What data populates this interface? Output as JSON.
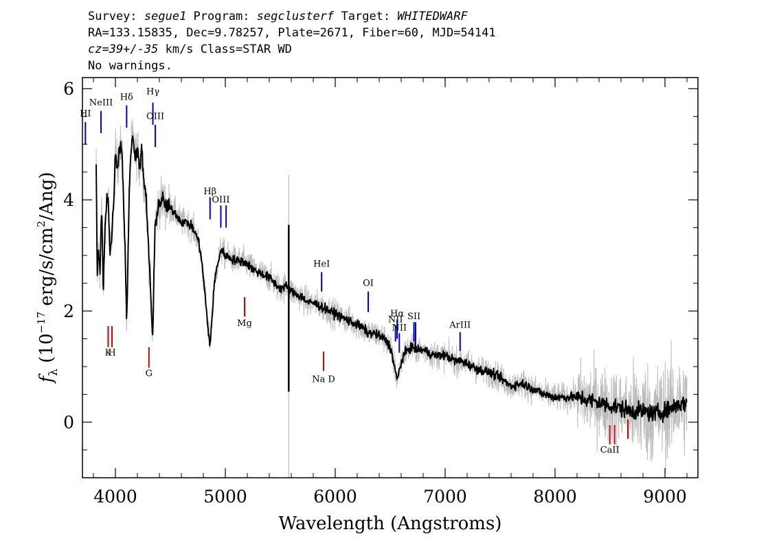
{
  "header": {
    "line1": {
      "survey_label": "Survey: ",
      "survey": "segue1",
      "program_label": " Program: ",
      "program": "segclusterf",
      "target_label": " Target: ",
      "target": "WHITEDWARF"
    },
    "line2": "RA=133.15835, Dec=9.78257, Plate=2671, Fiber=60, MJD=54141",
    "line3": {
      "cz": "cz=39+/-35",
      "rest": " km/s Class=STAR WD"
    },
    "line4": "No warnings."
  },
  "chart_data": {
    "type": "line",
    "xlabel": "Wavelength (Angstroms)",
    "ylabel": "f_λ (10^-17 erg/s/cm^2/Ang)",
    "xlim": [
      3700,
      9300
    ],
    "ylim": [
      -1,
      6.2
    ],
    "x_ticks": [
      4000,
      5000,
      6000,
      7000,
      8000,
      9000
    ],
    "y_ticks": [
      0,
      2,
      4,
      6
    ],
    "x_minor_step": 200,
    "y_minor_step": 0.5,
    "series": [
      {
        "color": "#000000",
        "x": [
          3825,
          3835,
          3845,
          3860,
          3875,
          3890,
          3905,
          3920,
          3935,
          3950,
          3965,
          3980,
          4000,
          4020,
          4040,
          4060,
          4080,
          4095,
          4102,
          4110,
          4125,
          4140,
          4160,
          4180,
          4200,
          4220,
          4240,
          4260,
          4280,
          4300,
          4320,
          4335,
          4340,
          4348,
          4360,
          4380,
          4400,
          4430,
          4460,
          4500,
          4550,
          4600,
          4650,
          4700,
          4750,
          4780,
          4800,
          4820,
          4840,
          4861,
          4880,
          4900,
          4930,
          4960,
          5000,
          5050,
          5100,
          5150,
          5200,
          5250,
          5300,
          5350,
          5400,
          5450,
          5500,
          5550,
          5600,
          5650,
          5700,
          5750,
          5800,
          5850,
          5900,
          5950,
          6000,
          6050,
          6100,
          6150,
          6200,
          6250,
          6300,
          6350,
          6400,
          6450,
          6500,
          6530,
          6563,
          6590,
          6620,
          6660,
          6700,
          6750,
          6800,
          6850,
          6900,
          6950,
          7000,
          7050,
          7100,
          7150,
          7200,
          7300,
          7400,
          7500,
          7600,
          7700,
          7800,
          7900,
          8000,
          8100,
          8200,
          8300,
          8400,
          8500,
          8600,
          8700,
          8800,
          8900,
          9000,
          9100,
          9200
        ],
        "y": [
          4.7,
          2.6,
          3.1,
          2.7,
          3.9,
          2.3,
          3.5,
          4.0,
          4.1,
          3.0,
          3.3,
          3.8,
          4.8,
          4.6,
          5.0,
          4.9,
          3.6,
          2.6,
          1.8,
          2.5,
          4.0,
          4.9,
          5.1,
          4.8,
          4.9,
          4.6,
          4.9,
          4.3,
          4.0,
          3.2,
          2.4,
          1.6,
          1.5,
          2.3,
          3.5,
          3.8,
          3.95,
          4.0,
          3.9,
          3.85,
          3.75,
          3.6,
          3.6,
          3.5,
          3.3,
          3.0,
          2.6,
          2.2,
          1.7,
          1.4,
          1.9,
          2.5,
          2.85,
          3.1,
          3.0,
          2.95,
          2.9,
          2.9,
          2.85,
          2.75,
          2.7,
          2.65,
          2.6,
          2.5,
          2.4,
          2.45,
          2.35,
          2.3,
          2.25,
          2.15,
          2.15,
          2.1,
          2.05,
          2.0,
          1.95,
          1.9,
          1.85,
          1.8,
          1.75,
          1.7,
          1.6,
          1.6,
          1.55,
          1.5,
          1.35,
          1.1,
          0.75,
          1.0,
          1.2,
          1.3,
          1.35,
          1.3,
          1.3,
          1.25,
          1.2,
          1.2,
          1.2,
          1.15,
          1.1,
          1.1,
          1.05,
          0.95,
          0.9,
          0.8,
          0.65,
          0.7,
          0.6,
          0.5,
          0.45,
          0.45,
          0.45,
          0.4,
          0.35,
          0.3,
          0.25,
          0.2,
          0.2,
          0.15,
          0.2,
          0.3,
          0.35
        ]
      }
    ],
    "noise_color": "#bcbcbc",
    "sky_line": {
      "x": 5577,
      "black_range": [
        0.55,
        3.55
      ],
      "grey_range": [
        -1.0,
        4.45
      ]
    },
    "emission_lines": [
      {
        "label": "HI",
        "x": 3727,
        "y0": 5.0,
        "y1": 5.4,
        "label_y": 5.5,
        "color": "#0000cc"
      },
      {
        "label": "NeIII",
        "x": 3869,
        "y0": 5.2,
        "y1": 5.6,
        "label_y": 5.7,
        "color": "#0000cc"
      },
      {
        "label": "Hδ",
        "x": 4102,
        "y0": 5.3,
        "y1": 5.7,
        "label_y": 5.8,
        "color": "#0000cc"
      },
      {
        "label": "Hγ",
        "x": 4341,
        "y0": 5.35,
        "y1": 5.75,
        "label_y": 5.9,
        "color": "#0000cc"
      },
      {
        "label": "OIII",
        "x": 4363,
        "y0": 4.95,
        "y1": 5.35,
        "label_y": 5.45,
        "color": "#0000cc"
      },
      {
        "label": "Hβ",
        "x": 4861,
        "y0": 3.65,
        "y1": 4.05,
        "label_y": 4.1,
        "color": "#0000cc"
      },
      {
        "label": "OIII",
        "x": 4959,
        "y0": 3.5,
        "y1": 3.9,
        "label_y": 3.95,
        "color": "#0000cc"
      },
      {
        "label": "",
        "x": 5007,
        "y0": 3.5,
        "y1": 3.9,
        "label_y": 3.95,
        "color": "#0000cc"
      },
      {
        "label": "HeI",
        "x": 5876,
        "y0": 2.35,
        "y1": 2.7,
        "label_y": 2.8,
        "color": "#0000cc"
      },
      {
        "label": "OI",
        "x": 6300,
        "y0": 1.98,
        "y1": 2.35,
        "label_y": 2.45,
        "color": "#0000cc"
      },
      {
        "label": "NII",
        "x": 6548,
        "y0": 1.45,
        "y1": 1.75,
        "label_y": 1.8,
        "color": "#0000cc"
      },
      {
        "label": "Hα",
        "x": 6563,
        "y0": 1.5,
        "y1": 1.85,
        "label_y": 1.9,
        "color": "#0000cc"
      },
      {
        "label": "NII",
        "x": 6583,
        "y0": 1.25,
        "y1": 1.6,
        "label_y": 1.65,
        "color": "#0000cc"
      },
      {
        "label": "SII",
        "x": 6716,
        "y0": 1.45,
        "y1": 1.8,
        "label_y": 1.85,
        "color": "#0000cc"
      },
      {
        "label": "",
        "x": 6731,
        "y0": 1.45,
        "y1": 1.8,
        "label_y": 1.85,
        "color": "#0000cc"
      },
      {
        "label": "ArIII",
        "x": 7136,
        "y0": 1.28,
        "y1": 1.62,
        "label_y": 1.7,
        "color": "#0000cc"
      }
    ],
    "absorption_lines": [
      {
        "label": "K",
        "x": 3934,
        "y0": 1.35,
        "y1": 1.73,
        "label_y": 1.2,
        "color": "#cc0000"
      },
      {
        "label": "H",
        "x": 3969,
        "y0": 1.35,
        "y1": 1.73,
        "label_y": 1.2,
        "color": "#cc0000"
      },
      {
        "label": "G",
        "x": 4305,
        "y0": 0.98,
        "y1": 1.35,
        "label_y": 0.83,
        "color": "#cc0000"
      },
      {
        "label": "Mg",
        "x": 5175,
        "y0": 1.9,
        "y1": 2.25,
        "label_y": 1.73,
        "color": "#cc0000"
      },
      {
        "label": "Na D",
        "x": 5894,
        "y0": 0.92,
        "y1": 1.27,
        "label_y": 0.72,
        "color": "#cc0000"
      },
      {
        "label": "CaII",
        "x": 8498,
        "y0": -0.4,
        "y1": -0.05,
        "label_y": -0.55,
        "color": "#cc0000"
      },
      {
        "label": "",
        "x": 8542,
        "y0": -0.4,
        "y1": -0.05,
        "label_y": -0.55,
        "color": "#cc0000"
      },
      {
        "label": "",
        "x": 8662,
        "y0": -0.3,
        "y1": 0.05,
        "label_y": -0.55,
        "color": "#cc0000"
      }
    ]
  }
}
